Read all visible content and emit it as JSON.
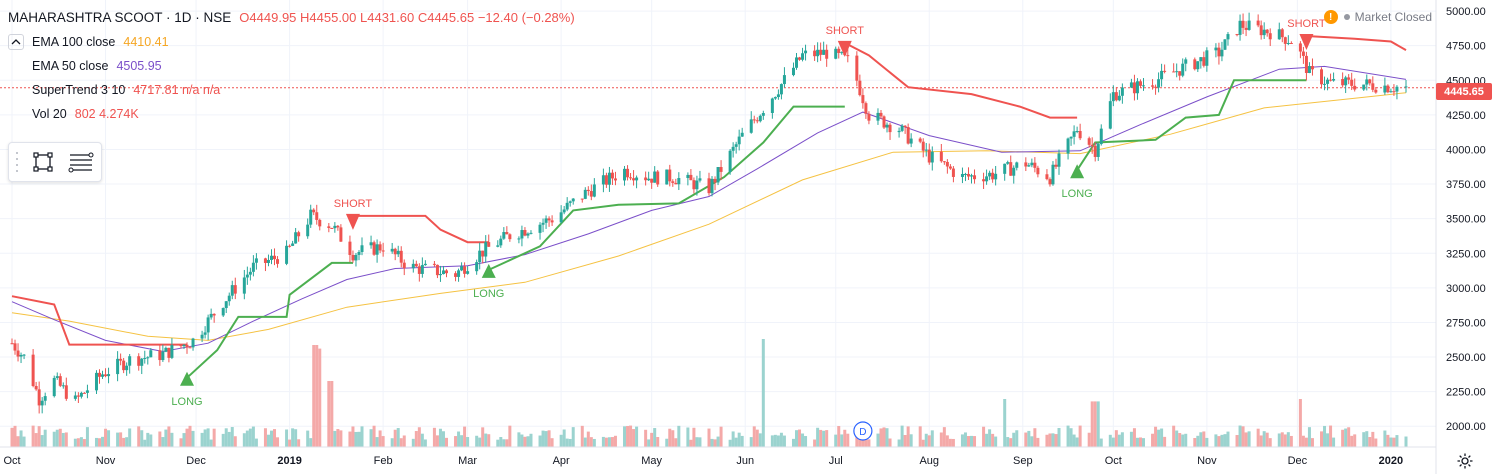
{
  "header": {
    "symbol": "MAHARASHTRA SCOOT · 1D · NSE",
    "ohlc": "O4449.95 H4455.00 L4431.60 C4445.65 −12.40 (−0.28%)",
    "market_status": "Market Closed",
    "warning_glyph": "!"
  },
  "indicators": [
    {
      "name": "EMA 100 close",
      "value": "4410.41",
      "color": "#f5a623"
    },
    {
      "name": "EMA 50 close",
      "value": "4505.95",
      "color": "#7b4fc9"
    },
    {
      "name": "SuperTrend 3 10",
      "value": "4717.81  n/a  n/a",
      "color": "#ef5350"
    },
    {
      "name": "Vol 20",
      "value": "802  4.274K",
      "color": "#ef5350",
      "value2_color": "#f57c00"
    }
  ],
  "last_price_label": "4445.65",
  "colors": {
    "up": "#26a69a",
    "down": "#ef5350",
    "vol_up": "#9bd3cf",
    "vol_down": "#f4a9a8",
    "ema100": "#f5c242",
    "ema50": "#7b4fc9",
    "st_long": "#4caf50",
    "st_short": "#ef5350",
    "grid": "#f0f3fa",
    "axis_text": "#131722"
  },
  "icons": [
    "chevron-up-icon",
    "rectangle-tool-icon",
    "lines-tool-icon",
    "warning-icon",
    "settings-gear-icon",
    "dividend-marker-icon"
  ],
  "chart_data": {
    "type": "candlestick",
    "title": "MAHARASHTRA SCOOT · 1D · NSE",
    "ylim": [
      1850,
      5080
    ],
    "y_ticks": [
      "5000.00",
      "4750.00",
      "4500.00",
      "4250.00",
      "4000.00",
      "3750.00",
      "3500.00",
      "3250.00",
      "3000.00",
      "2750.00",
      "2500.00",
      "2250.00",
      "2000.00"
    ],
    "x_ticks": [
      "Oct",
      "Nov",
      "Dec",
      "2019",
      "Feb",
      "Mar",
      "Apr",
      "May",
      "Jun",
      "Jul",
      "Aug",
      "Sep",
      "Oct",
      "Nov",
      "Dec",
      "2020"
    ],
    "x_tick_dates": [
      "2018-10-01",
      "2018-11-01",
      "2018-12-01",
      "2019-01-01",
      "2019-02-01",
      "2019-03-01",
      "2019-04-01",
      "2019-05-01",
      "2019-06-01",
      "2019-07-01",
      "2019-08-01",
      "2019-09-01",
      "2019-10-01",
      "2019-11-01",
      "2019-12-01",
      "2020-01-01"
    ],
    "date_range": [
      "2018-10-01",
      "2020-01-06"
    ],
    "price_path": [
      [
        "2018-10-01",
        2600
      ],
      [
        "2018-10-05",
        2500
      ],
      [
        "2018-10-10",
        2200
      ],
      [
        "2018-10-15",
        2330
      ],
      [
        "2018-10-22",
        2180
      ],
      [
        "2018-10-31",
        2380
      ],
      [
        "2018-11-09",
        2480
      ],
      [
        "2018-11-20",
        2520
      ],
      [
        "2018-11-30",
        2620
      ],
      [
        "2018-12-10",
        2900
      ],
      [
        "2018-12-20",
        3150
      ],
      [
        "2018-12-31",
        3250
      ],
      [
        "2019-01-08",
        3520
      ],
      [
        "2019-01-15",
        3450
      ],
      [
        "2019-01-22",
        3250
      ],
      [
        "2019-02-01",
        3300
      ],
      [
        "2019-02-10",
        3150
      ],
      [
        "2019-02-25",
        3100
      ],
      [
        "2019-03-05",
        3250
      ],
      [
        "2019-03-15",
        3380
      ],
      [
        "2019-03-29",
        3500
      ],
      [
        "2019-04-10",
        3700
      ],
      [
        "2019-04-22",
        3850
      ],
      [
        "2019-04-30",
        3800
      ],
      [
        "2019-05-08",
        3800
      ],
      [
        "2019-05-20",
        3720
      ],
      [
        "2019-05-31",
        4100
      ],
      [
        "2019-06-07",
        4300
      ],
      [
        "2019-06-14",
        4500
      ],
      [
        "2019-06-20",
        4680
      ],
      [
        "2019-06-28",
        4700
      ],
      [
        "2019-07-05",
        4640
      ],
      [
        "2019-07-08",
        4500
      ],
      [
        "2019-07-12",
        4250
      ],
      [
        "2019-07-22",
        4150
      ],
      [
        "2019-08-01",
        3950
      ],
      [
        "2019-08-12",
        3800
      ],
      [
        "2019-08-22",
        3820
      ],
      [
        "2019-09-02",
        3900
      ],
      [
        "2019-09-10",
        3800
      ],
      [
        "2019-09-19",
        4150
      ],
      [
        "2019-09-25",
        4000
      ],
      [
        "2019-10-01",
        4400
      ],
      [
        "2019-10-15",
        4500
      ],
      [
        "2019-10-25",
        4600
      ],
      [
        "2019-11-05",
        4700
      ],
      [
        "2019-11-12",
        4900
      ],
      [
        "2019-11-22",
        4850
      ],
      [
        "2019-11-30",
        4780
      ],
      [
        "2019-12-05",
        4550
      ],
      [
        "2019-12-12",
        4480
      ],
      [
        "2019-12-24",
        4470
      ],
      [
        "2020-01-06",
        4445.65
      ]
    ],
    "ema50": [
      [
        "2018-10-01",
        2900
      ],
      [
        "2018-10-15",
        2770
      ],
      [
        "2018-11-01",
        2620
      ],
      [
        "2018-11-20",
        2540
      ],
      [
        "2018-12-05",
        2600
      ],
      [
        "2018-12-20",
        2760
      ],
      [
        "2019-01-05",
        2920
      ],
      [
        "2019-01-20",
        3060
      ],
      [
        "2019-02-05",
        3140
      ],
      [
        "2019-03-01",
        3160
      ],
      [
        "2019-03-20",
        3240
      ],
      [
        "2019-04-10",
        3390
      ],
      [
        "2019-05-01",
        3560
      ],
      [
        "2019-05-20",
        3660
      ],
      [
        "2019-06-05",
        3860
      ],
      [
        "2019-06-25",
        4120
      ],
      [
        "2019-07-10",
        4270
      ],
      [
        "2019-08-01",
        4100
      ],
      [
        "2019-08-25",
        3980
      ],
      [
        "2019-09-20",
        3990
      ],
      [
        "2019-10-10",
        4180
      ],
      [
        "2019-11-01",
        4380
      ],
      [
        "2019-11-25",
        4580
      ],
      [
        "2019-12-10",
        4600
      ],
      [
        "2020-01-06",
        4505.95
      ]
    ],
    "ema100": [
      [
        "2018-10-01",
        2820
      ],
      [
        "2018-10-20",
        2760
      ],
      [
        "2018-11-15",
        2650
      ],
      [
        "2018-12-05",
        2620
      ],
      [
        "2018-12-25",
        2700
      ],
      [
        "2019-01-20",
        2860
      ],
      [
        "2019-02-20",
        2960
      ],
      [
        "2019-03-20",
        3040
      ],
      [
        "2019-04-20",
        3230
      ],
      [
        "2019-05-20",
        3460
      ],
      [
        "2019-06-20",
        3780
      ],
      [
        "2019-07-20",
        3980
      ],
      [
        "2019-08-20",
        3990
      ],
      [
        "2019-09-20",
        3970
      ],
      [
        "2019-10-20",
        4110
      ],
      [
        "2019-11-20",
        4300
      ],
      [
        "2019-12-20",
        4370
      ],
      [
        "2020-01-06",
        4410.41
      ]
    ],
    "supertrend_short_1": [
      [
        "2018-10-01",
        2940
      ],
      [
        "2018-10-15",
        2880
      ],
      [
        "2018-10-20",
        2590
      ],
      [
        "2018-11-28",
        2590
      ]
    ],
    "supertrend_long_1": [
      [
        "2018-11-28",
        2350
      ],
      [
        "2018-12-08",
        2550
      ],
      [
        "2018-12-15",
        2790
      ],
      [
        "2018-12-31",
        2790
      ],
      [
        "2019-01-01",
        2950
      ],
      [
        "2019-01-15",
        3180
      ],
      [
        "2019-01-22",
        3180
      ]
    ],
    "supertrend_short_2": [
      [
        "2019-01-22",
        3520
      ],
      [
        "2019-02-15",
        3520
      ],
      [
        "2019-02-20",
        3420
      ],
      [
        "2019-03-01",
        3330
      ],
      [
        "2019-03-08",
        3330
      ]
    ],
    "supertrend_long_2": [
      [
        "2019-03-08",
        3130
      ],
      [
        "2019-03-25",
        3300
      ],
      [
        "2019-04-05",
        3560
      ],
      [
        "2019-04-20",
        3600
      ],
      [
        "2019-05-10",
        3610
      ],
      [
        "2019-05-25",
        3800
      ],
      [
        "2019-06-07",
        4050
      ],
      [
        "2019-06-17",
        4310
      ],
      [
        "2019-07-04",
        4310
      ]
    ],
    "supertrend_short_3": [
      [
        "2019-07-04",
        4770
      ],
      [
        "2019-07-12",
        4680
      ],
      [
        "2019-07-25",
        4450
      ],
      [
        "2019-08-15",
        4400
      ],
      [
        "2019-08-31",
        4310
      ],
      [
        "2019-09-10",
        4230
      ],
      [
        "2019-09-19",
        4230
      ]
    ],
    "supertrend_long_3": [
      [
        "2019-09-19",
        3850
      ],
      [
        "2019-09-25",
        4050
      ],
      [
        "2019-10-15",
        4070
      ],
      [
        "2019-10-25",
        4230
      ],
      [
        "2019-11-05",
        4250
      ],
      [
        "2019-11-10",
        4500
      ],
      [
        "2019-12-04",
        4500
      ]
    ],
    "supertrend_short_4": [
      [
        "2019-12-04",
        4820
      ],
      [
        "2019-12-20",
        4800
      ],
      [
        "2020-01-01",
        4780
      ],
      [
        "2020-01-06",
        4717.81
      ]
    ],
    "signals": [
      {
        "label": "LONG",
        "date": "2018-11-28",
        "price": 2350,
        "dir": "up"
      },
      {
        "label": "SHORT",
        "date": "2019-01-22",
        "price": 3520,
        "dir": "down"
      },
      {
        "label": "LONG",
        "date": "2019-03-08",
        "price": 3130,
        "dir": "up"
      },
      {
        "label": "SHORT",
        "date": "2019-07-04",
        "price": 4770,
        "dir": "down"
      },
      {
        "label": "LONG",
        "date": "2019-09-19",
        "price": 3850,
        "dir": "up"
      },
      {
        "label": "SHORT",
        "date": "2019-12-04",
        "price": 4820,
        "dir": "down"
      }
    ],
    "volume_spikes": [
      {
        "date": "2019-01-10",
        "rel": 0.85
      },
      {
        "date": "2019-01-12",
        "rel": 0.82
      },
      {
        "date": "2019-01-14",
        "rel": 0.55
      },
      {
        "date": "2019-06-08",
        "rel": 0.9
      },
      {
        "date": "2019-08-25",
        "rel": 0.4
      },
      {
        "date": "2019-09-25",
        "rel": 0.38
      },
      {
        "date": "2019-12-01",
        "rel": 0.4
      }
    ],
    "last_price": 4445.65,
    "dividend_marker": {
      "label": "D",
      "date": "2019-07-10"
    }
  }
}
